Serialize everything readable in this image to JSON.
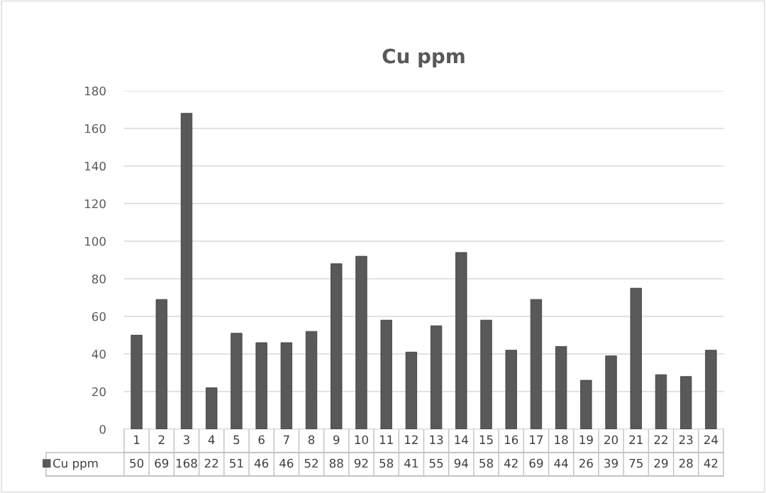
{
  "chart_data": {
    "type": "bar",
    "title": "Cu ppm",
    "categories": [
      "1",
      "2",
      "3",
      "4",
      "5",
      "6",
      "7",
      "8",
      "9",
      "10",
      "11",
      "12",
      "13",
      "14",
      "15",
      "16",
      "17",
      "18",
      "19",
      "20",
      "21",
      "22",
      "23",
      "24"
    ],
    "series": [
      {
        "name": "Cu ppm",
        "color": "#595959",
        "values": [
          50,
          69,
          168,
          22,
          51,
          46,
          46,
          52,
          88,
          92,
          58,
          41,
          55,
          94,
          58,
          42,
          69,
          44,
          26,
          39,
          75,
          29,
          28,
          42
        ]
      }
    ],
    "ylim": [
      0,
      180
    ],
    "yticks": [
      0,
      20,
      40,
      60,
      80,
      100,
      120,
      140,
      160,
      180
    ],
    "grid": "y",
    "legend": "bottom",
    "data_labels": true
  }
}
